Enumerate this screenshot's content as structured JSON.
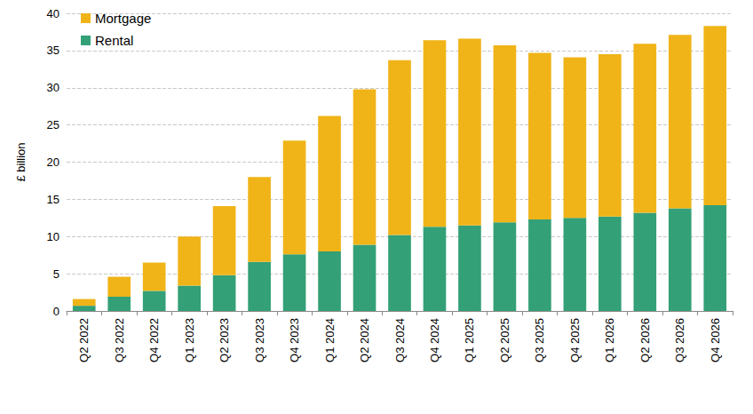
{
  "chart_data": {
    "type": "bar",
    "y_label": "£ billion",
    "categories": [
      "Q2 2022",
      "Q3 2022",
      "Q4 2022",
      "Q1 2023",
      "Q2 2023",
      "Q3 2023",
      "Q4 2023",
      "Q1 2024",
      "Q2 2024",
      "Q3 2024",
      "Q4 2024",
      "Q1 2025",
      "Q2 2025",
      "Q3 2025",
      "Q4 2025",
      "Q1 2026",
      "Q2 2026",
      "Q3 2026",
      "Q4 2026"
    ],
    "series": [
      {
        "name": "Rental",
        "color": "#33a077",
        "values": [
          0.7,
          1.9,
          2.7,
          3.4,
          4.8,
          6.6,
          7.6,
          8.0,
          8.9,
          10.2,
          11.3,
          11.5,
          11.9,
          12.3,
          12.5,
          12.7,
          13.2,
          13.8,
          14.2
        ]
      },
      {
        "name": "Mortgage",
        "color": "#f0b418",
        "values": [
          0.9,
          2.7,
          3.8,
          6.6,
          9.3,
          11.4,
          15.3,
          18.2,
          20.9,
          23.5,
          25.1,
          25.1,
          23.8,
          22.4,
          21.6,
          21.8,
          22.7,
          23.3,
          24.1
        ]
      }
    ],
    "ylim": [
      0,
      40
    ],
    "yticks": [
      0,
      5,
      10,
      15,
      20,
      25,
      30,
      35,
      40
    ],
    "stacked": true,
    "grid": true,
    "legend": "top-left"
  }
}
